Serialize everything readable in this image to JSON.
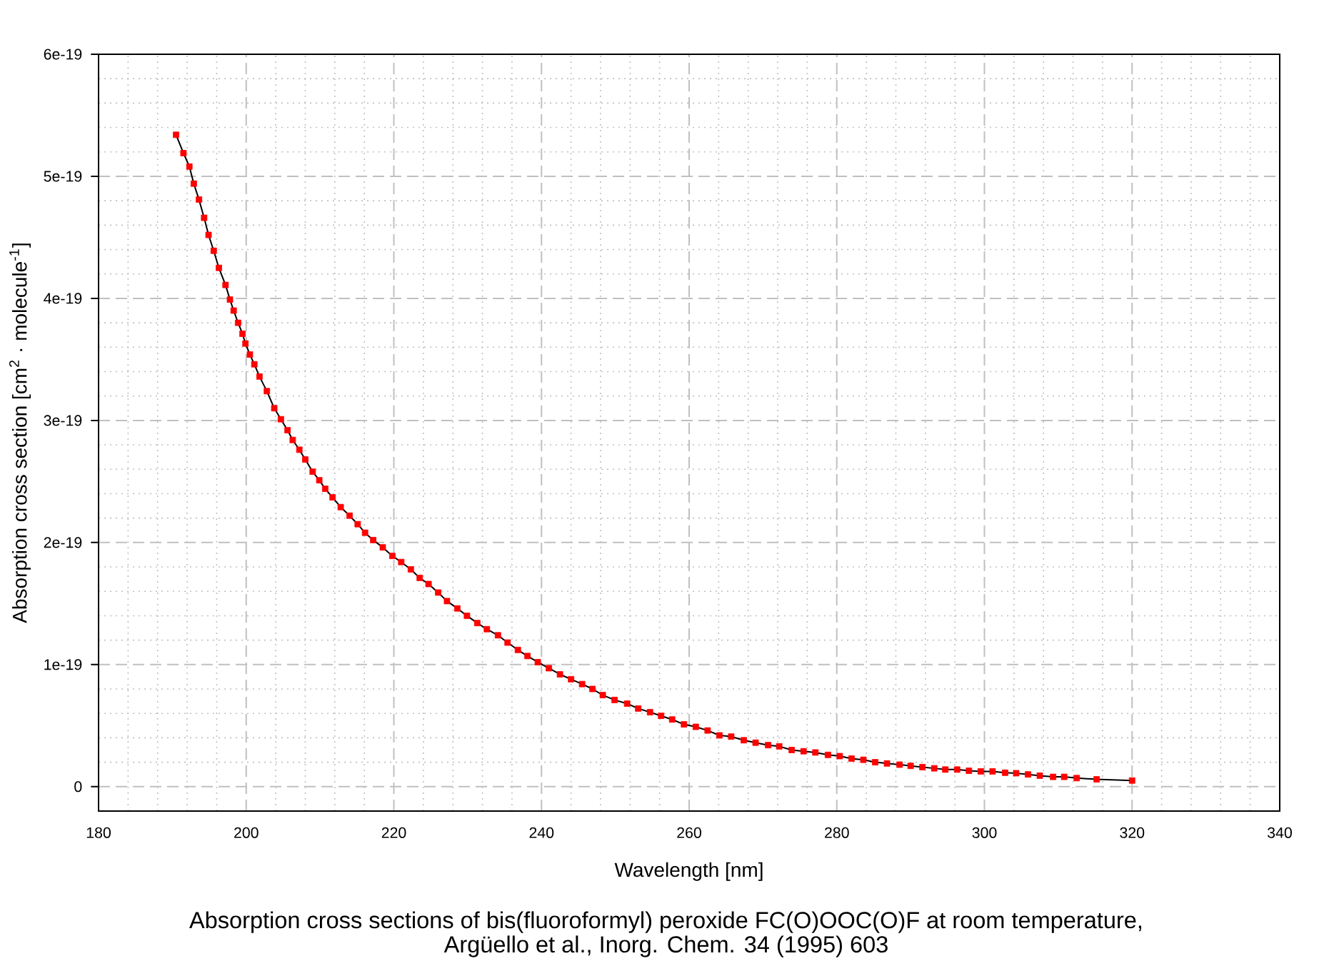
{
  "chart_data": {
    "type": "line",
    "title": "Absorption cross sections of bis(fluoroformyl) peroxide FC(O)OOC(O)F at room temperature,",
    "annotations": [
      "Argüello et al., Inorg. Chem. 34 (1995) 603"
    ],
    "xlabel": "Wavelength [nm]",
    "ylabel": "Absorption cross section [cm$^{2}$ · molecule$^{-1}$]",
    "xlim": [
      180,
      340
    ],
    "xticks": [
      180,
      200,
      220,
      240,
      260,
      280,
      300,
      320,
      340
    ],
    "ylim": [
      -2e-20,
      6e-19
    ],
    "yticks": [
      0,
      {
        "value": 1e-19,
        "label": "1e-19"
      },
      {
        "value": 2e-19,
        "label": "2e-19"
      },
      {
        "value": 3e-19,
        "label": "3e-19"
      },
      {
        "value": 4e-19,
        "label": "4e-19"
      },
      {
        "value": 5e-19,
        "label": "5e-19"
      },
      {
        "value": 6e-19,
        "label": "6e-19"
      }
    ],
    "grid": true,
    "marker": "square",
    "x": [
      190.5,
      191.5,
      192.3,
      192.9,
      193.6,
      194.3,
      194.9,
      195.6,
      196.3,
      197.2,
      197.8,
      198.3,
      198.9,
      199.5,
      199.9,
      200.5,
      201.1,
      201.8,
      202.8,
      203.8,
      204.7,
      205.6,
      206.3,
      207.2,
      208.0,
      209.0,
      209.9,
      210.7,
      211.7,
      212.8,
      214.0,
      215.1,
      216.1,
      217.2,
      218.5,
      219.8,
      221.0,
      222.3,
      223.5,
      224.7,
      226.0,
      227.2,
      228.6,
      229.9,
      231.3,
      232.6,
      234.1,
      235.4,
      236.8,
      238.1,
      239.5,
      241.0,
      242.5,
      244.0,
      245.5,
      246.9,
      248.3,
      249.9,
      251.6,
      253.1,
      254.7,
      256.2,
      257.7,
      259.3,
      260.9,
      262.5,
      264.1,
      265.7,
      267.4,
      269.0,
      270.7,
      272.2,
      273.9,
      275.5,
      277.1,
      278.8,
      280.4,
      282.0,
      283.6,
      285.2,
      286.8,
      288.5,
      290.0,
      291.6,
      293.2,
      294.7,
      296.3,
      297.9,
      299.5,
      301.1,
      302.8,
      304.3,
      305.9,
      307.5,
      309.3,
      310.8,
      312.5,
      315.2,
      320.0
    ],
    "series": [
      {
        "color": "#000000",
        "marker": "none",
        "values": [
          5.34e-19,
          5.19e-19,
          5.08e-19,
          4.94e-19,
          4.81e-19,
          4.66e-19,
          4.52e-19,
          4.39e-19,
          4.25e-19,
          4.11e-19,
          3.99e-19,
          3.9e-19,
          3.8e-19,
          3.71e-19,
          3.63e-19,
          3.54e-19,
          3.46e-19,
          3.36e-19,
          3.24e-19,
          3.1e-19,
          3.01e-19,
          2.92e-19,
          2.84e-19,
          2.76e-19,
          2.68e-19,
          2.58e-19,
          2.51e-19,
          2.44e-19,
          2.37e-19,
          2.29e-19,
          2.22e-19,
          2.15e-19,
          2.08e-19,
          2.02e-19,
          1.96e-19,
          1.89e-19,
          1.84e-19,
          1.78e-19,
          1.71e-19,
          1.66e-19,
          1.59e-19,
          1.52e-19,
          1.46e-19,
          1.4e-19,
          1.34e-19,
          1.29e-19,
          1.24e-19,
          1.18e-19,
          1.12e-19,
          1.07e-19,
          1.02e-19,
          9.7e-20,
          9.2e-20,
          8.8e-20,
          8.4e-20,
          8e-20,
          7.5e-20,
          7.1e-20,
          6.8e-20,
          6.4e-20,
          6.1e-20,
          5.8e-20,
          5.5e-20,
          5.1e-20,
          4.9e-20,
          4.6e-20,
          4.2e-20,
          4.1e-20,
          3.8e-20,
          3.6e-20,
          3.4e-20,
          3.3e-20,
          3e-20,
          2.9e-20,
          2.8e-20,
          2.6e-20,
          2.5e-20,
          2.3e-20,
          2.2e-20,
          2e-20,
          1.9e-20,
          1.8e-20,
          1.7e-20,
          1.6e-20,
          1.5e-20,
          1.4e-20,
          1.4e-20,
          1.3e-20,
          1.25e-20,
          1.25e-20,
          1.14e-20,
          1.1e-20,
          1e-20,
          9e-21,
          8e-21,
          8e-21,
          7e-21,
          6e-21,
          5e-21
        ]
      },
      {
        "type": "scatter",
        "color": "#ff0000",
        "values": [
          5.34e-19,
          5.19e-19,
          5.08e-19,
          4.94e-19,
          4.81e-19,
          4.66e-19,
          4.52e-19,
          4.39e-19,
          4.25e-19,
          4.11e-19,
          3.99e-19,
          3.9e-19,
          3.8e-19,
          3.71e-19,
          3.63e-19,
          3.54e-19,
          3.46e-19,
          3.36e-19,
          3.24e-19,
          3.1e-19,
          3.01e-19,
          2.92e-19,
          2.84e-19,
          2.76e-19,
          2.68e-19,
          2.58e-19,
          2.51e-19,
          2.44e-19,
          2.37e-19,
          2.29e-19,
          2.22e-19,
          2.15e-19,
          2.08e-19,
          2.02e-19,
          1.96e-19,
          1.89e-19,
          1.84e-19,
          1.78e-19,
          1.71e-19,
          1.66e-19,
          1.59e-19,
          1.52e-19,
          1.46e-19,
          1.4e-19,
          1.34e-19,
          1.29e-19,
          1.24e-19,
          1.18e-19,
          1.12e-19,
          1.07e-19,
          1.02e-19,
          9.7e-20,
          9.2e-20,
          8.8e-20,
          8.4e-20,
          8e-20,
          7.5e-20,
          7.1e-20,
          6.8e-20,
          6.4e-20,
          6.1e-20,
          5.8e-20,
          5.5e-20,
          5.1e-20,
          4.9e-20,
          4.6e-20,
          4.2e-20,
          4.1e-20,
          3.8e-20,
          3.6e-20,
          3.4e-20,
          3.3e-20,
          3e-20,
          2.9e-20,
          2.8e-20,
          2.6e-20,
          2.5e-20,
          2.3e-20,
          2.2e-20,
          2e-20,
          1.9e-20,
          1.8e-20,
          1.7e-20,
          1.6e-20,
          1.5e-20,
          1.4e-20,
          1.4e-20,
          1.3e-20,
          1.25e-20,
          1.25e-20,
          1.14e-20,
          1.1e-20,
          1e-20,
          9e-21,
          8e-21,
          8e-21,
          7e-21,
          6e-21,
          5e-21
        ]
      }
    ]
  }
}
